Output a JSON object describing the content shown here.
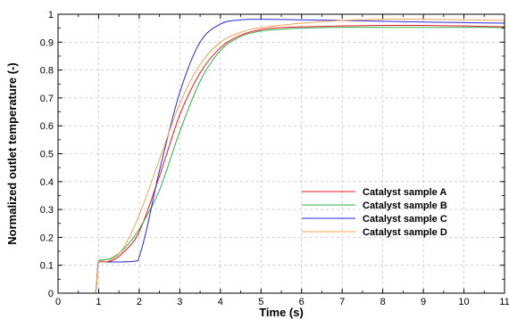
{
  "chart_data": {
    "type": "line",
    "xlabel": "Time (s)",
    "ylabel": "Normalized outlet temperature (-)",
    "xlim": [
      0,
      11
    ],
    "ylim": [
      0,
      1
    ],
    "xticks": [
      0,
      1,
      2,
      3,
      4,
      5,
      6,
      7,
      8,
      9,
      10,
      11
    ],
    "yticks": [
      0,
      0.1,
      0.2,
      0.3,
      0.4,
      0.5,
      0.6,
      0.7,
      0.8,
      0.9,
      1
    ],
    "ytick_labels": [
      "0",
      "0.1",
      "0.2",
      "0.3",
      "0.4",
      "0.5",
      "0.6",
      "0.7",
      "0.8",
      "0.9",
      "1"
    ],
    "grid": true,
    "legend_position": "lower-right",
    "series": [
      {
        "name": "Catalyst sample A",
        "color": "#e8141e",
        "x": [
          0.92,
          0.95,
          0.97,
          1.0,
          1.1,
          1.3,
          1.6,
          2.0,
          2.5,
          3.0,
          3.5,
          4.0,
          4.5,
          5.0,
          5.5,
          6.0,
          7.0,
          8.0,
          9.0,
          10.0,
          11.0
        ],
        "y": [
          0.0,
          0.03,
          0.08,
          0.11,
          0.115,
          0.115,
          0.145,
          0.22,
          0.42,
          0.64,
          0.79,
          0.88,
          0.925,
          0.945,
          0.952,
          0.955,
          0.958,
          0.96,
          0.96,
          0.958,
          0.955
        ]
      },
      {
        "name": "Catalyst sample B",
        "color": "#2bb34a",
        "x": [
          0.92,
          0.95,
          0.97,
          1.0,
          1.1,
          1.3,
          1.6,
          2.0,
          2.5,
          3.0,
          3.5,
          4.0,
          4.5,
          5.0,
          5.5,
          6.0,
          7.0,
          8.0,
          9.0,
          10.0,
          11.0
        ],
        "y": [
          0.0,
          0.03,
          0.08,
          0.115,
          0.12,
          0.125,
          0.155,
          0.23,
          0.37,
          0.58,
          0.76,
          0.87,
          0.92,
          0.94,
          0.946,
          0.95,
          0.953,
          0.953,
          0.953,
          0.953,
          0.952
        ]
      },
      {
        "name": "Catalyst sample C",
        "color": "#2828dc",
        "x": [
          0.92,
          0.95,
          0.97,
          1.0,
          1.1,
          1.5,
          1.9,
          2.0,
          2.2,
          2.5,
          3.0,
          3.5,
          4.0,
          4.5,
          5.0,
          6.0,
          7.0,
          8.0,
          9.0,
          10.0,
          11.0
        ],
        "y": [
          0.0,
          0.03,
          0.08,
          0.11,
          0.112,
          0.112,
          0.115,
          0.13,
          0.24,
          0.44,
          0.72,
          0.9,
          0.965,
          0.98,
          0.982,
          0.98,
          0.978,
          0.975,
          0.972,
          0.97,
          0.968
        ]
      },
      {
        "name": "Catalyst sample D",
        "color": "#f4a24c",
        "x": [
          0.92,
          0.95,
          0.97,
          1.0,
          1.1,
          1.3,
          1.6,
          2.0,
          2.5,
          3.0,
          3.5,
          4.0,
          4.5,
          5.0,
          6.0,
          7.0,
          8.0,
          9.0,
          10.0,
          11.0
        ],
        "y": [
          0.0,
          0.03,
          0.08,
          0.11,
          0.112,
          0.12,
          0.16,
          0.28,
          0.48,
          0.68,
          0.82,
          0.9,
          0.935,
          0.952,
          0.968,
          0.978,
          0.982,
          0.982,
          0.98,
          0.978
        ]
      }
    ]
  }
}
